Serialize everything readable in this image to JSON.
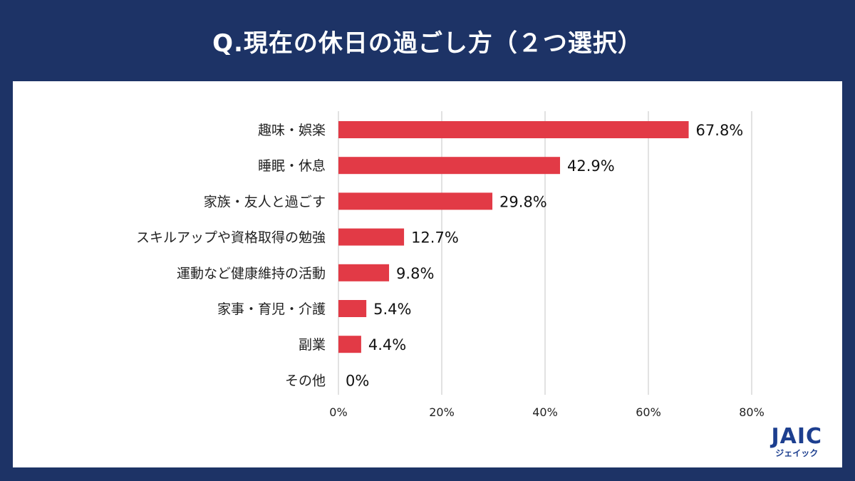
{
  "header": {
    "title": "Q.現在の休日の過ごし方（２つ選択）"
  },
  "logo": {
    "mark": "JAIC",
    "sub": "ジェイック"
  },
  "colors": {
    "background": "#1d3366",
    "bar": "#e23a46",
    "grid": "#d9d9d9",
    "panel": "#ffffff"
  },
  "chart_data": {
    "type": "bar",
    "orientation": "horizontal",
    "categories": [
      "趣味・娯楽",
      "睡眠・休息",
      "家族・友人と過ごす",
      "スキルアップや資格取得の勉強",
      "運動など健康維持の活動",
      "家事・育児・介護",
      "副業",
      "その他"
    ],
    "values": [
      67.8,
      42.9,
      29.8,
      12.7,
      9.8,
      5.4,
      4.4,
      0
    ],
    "value_labels": [
      "67.8%",
      "42.9%",
      "29.8%",
      "12.7%",
      "9.8%",
      "5.4%",
      "4.4%",
      "0%"
    ],
    "xlim": [
      0,
      80
    ],
    "xticks": [
      0,
      20,
      40,
      60,
      80
    ],
    "xtick_labels": [
      "0%",
      "20%",
      "40%",
      "60%",
      "80%"
    ],
    "grid": true,
    "legend": "none"
  }
}
